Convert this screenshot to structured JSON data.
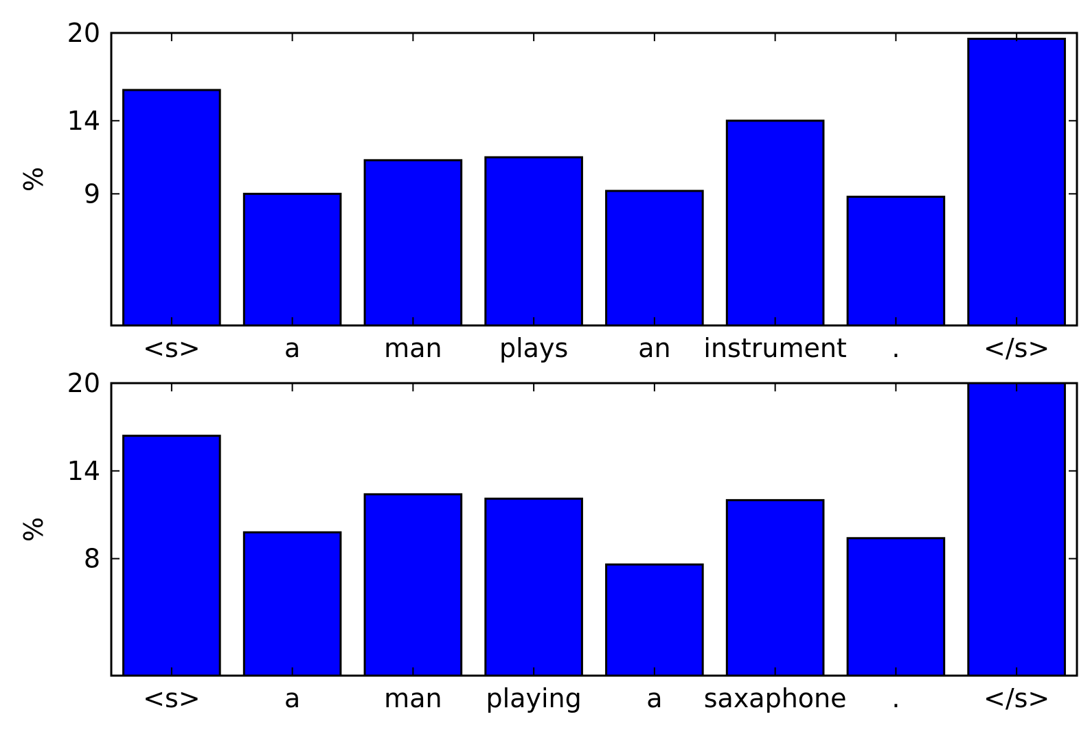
{
  "chart_data": [
    {
      "type": "bar",
      "categories": [
        "<s>",
        "a",
        "man",
        "plays",
        "an",
        "instrument",
        ".",
        "</s>"
      ],
      "values": [
        16.1,
        9.0,
        11.3,
        11.5,
        9.2,
        14.0,
        8.8,
        19.6
      ],
      "ylabel": "%",
      "ylim": [
        0,
        20
      ],
      "yticks": [
        9,
        14,
        20
      ],
      "bar_color": "#0000ff",
      "grid": false
    },
    {
      "type": "bar",
      "categories": [
        "<s>",
        "a",
        "man",
        "playing",
        "a",
        "saxaphone",
        ".",
        "</s>"
      ],
      "values": [
        16.4,
        9.8,
        12.4,
        12.1,
        7.6,
        12.0,
        9.4,
        20.0
      ],
      "ylabel": "%",
      "ylim": [
        0,
        20
      ],
      "yticks": [
        8,
        14,
        20
      ],
      "bar_color": "#0000ff",
      "grid": false
    }
  ]
}
